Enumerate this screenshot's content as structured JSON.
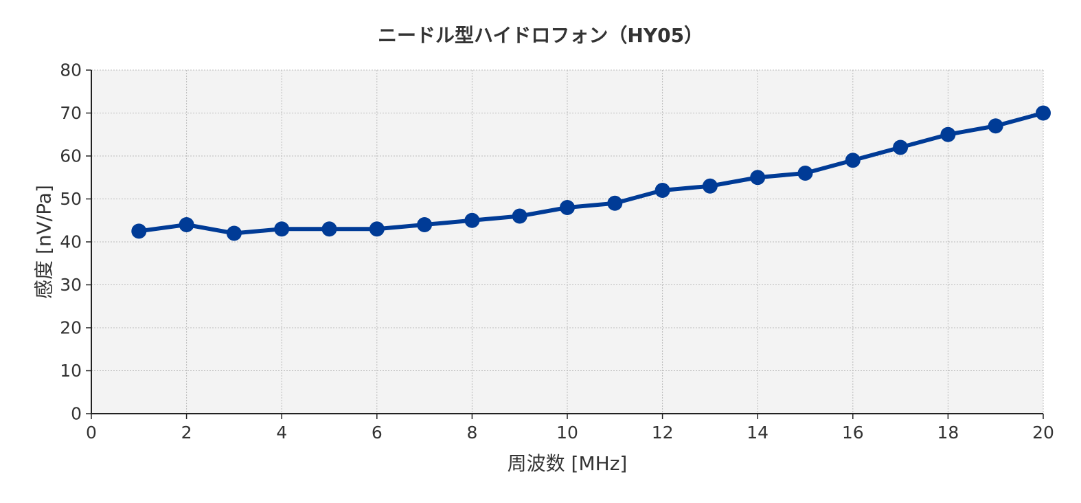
{
  "chart_data": {
    "type": "line",
    "title": "ニードル型ハイドロフォン（HY05）",
    "xlabel": "周波数 [MHz]",
    "ylabel": "感度 [nV/Pa]",
    "xlim": [
      0,
      20
    ],
    "ylim": [
      0,
      80
    ],
    "xticks": [
      0,
      2,
      4,
      6,
      8,
      10,
      12,
      14,
      16,
      18,
      20
    ],
    "yticks": [
      0,
      10,
      20,
      30,
      40,
      50,
      60,
      70,
      80
    ],
    "grid": true,
    "series": [
      {
        "x": [
          1,
          2,
          3,
          4,
          5,
          6,
          7,
          8,
          9,
          10,
          11,
          12,
          13,
          14,
          15,
          16,
          17,
          18,
          19,
          20
        ],
        "y": [
          42.5,
          44,
          42,
          43,
          43,
          43,
          44,
          45,
          46,
          48,
          49,
          52,
          53,
          55,
          56,
          59,
          62,
          65,
          67,
          70
        ],
        "color": "#003b96"
      }
    ],
    "plot_background": "#f3f3f3",
    "grid_color": "#bbbbbb"
  }
}
